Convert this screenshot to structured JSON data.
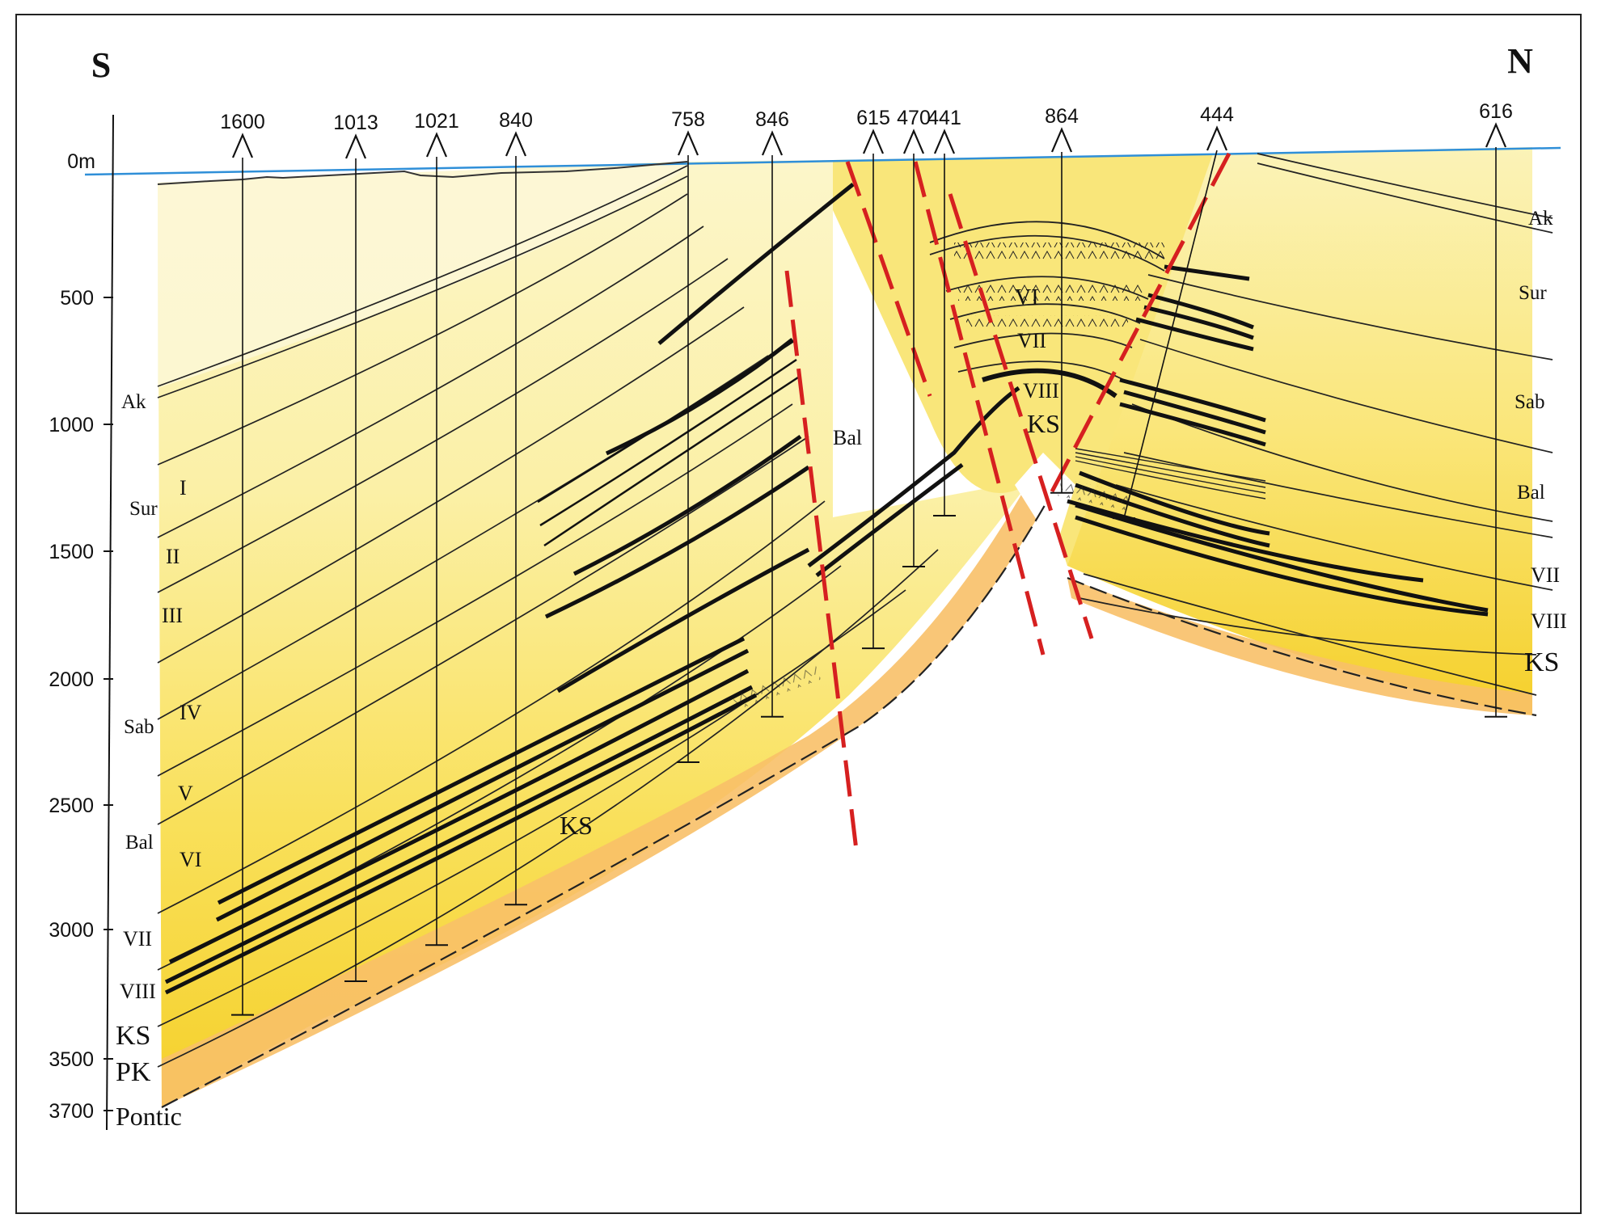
{
  "directions": {
    "left": "S",
    "right": "N"
  },
  "depth_axis": {
    "zero_label": "0m",
    "ticks": [
      {
        "label": "500",
        "value": 500
      },
      {
        "label": "1000",
        "value": 1000
      },
      {
        "label": "1500",
        "value": 1500
      },
      {
        "label": "2000",
        "value": 2000
      },
      {
        "label": "2500",
        "value": 2500
      },
      {
        "label": "3000",
        "value": 3000
      },
      {
        "label": "3500",
        "value": 3500
      },
      {
        "label": "3700",
        "value": 3700
      }
    ]
  },
  "wells": [
    {
      "label": "1600",
      "td": 3330
    },
    {
      "label": "1013",
      "td": 3200
    },
    {
      "label": "1021",
      "td": 3060
    },
    {
      "label": "840",
      "td": 2900
    },
    {
      "label": "758",
      "td": 2330
    },
    {
      "label": "846",
      "td": 2150
    },
    {
      "label": "615",
      "td": 1880
    },
    {
      "label": "470",
      "td": 1560
    },
    {
      "label": "441",
      "td": 1360
    },
    {
      "label": "864",
      "td": 1270
    },
    {
      "label": "444",
      "td": 1370
    },
    {
      "label": "616",
      "td": 2150
    }
  ],
  "left_labels": {
    "ak": "Ak",
    "sur": "Sur",
    "sab": "Sab",
    "bal": "Bal",
    "I": "I",
    "II": "II",
    "III": "III",
    "IV": "IV",
    "V": "V",
    "VI": "VI",
    "VII": "VII",
    "VIII": "VIII",
    "KS": "KS",
    "PK": "PK",
    "pontic": "Pontic"
  },
  "center_labels": {
    "bal": "Bal",
    "ks_lower": "KS",
    "ks_crest": "KS",
    "vi": "VI",
    "vii": "VII",
    "viii": "VIII"
  },
  "right_labels": {
    "ak": "Ak",
    "sur": "Sur",
    "sab": "Sab",
    "bal": "Bal",
    "vii": "VII",
    "viii": "VIII",
    "ks": "KS"
  },
  "colors": {
    "sea_level": "#2f8fd8",
    "fault": "#d62020",
    "pale_fill": "#fcf4c0",
    "mid_fill": "#fae878",
    "deep_fill": "#f6d62c",
    "base_fill": "#f8c46a"
  }
}
